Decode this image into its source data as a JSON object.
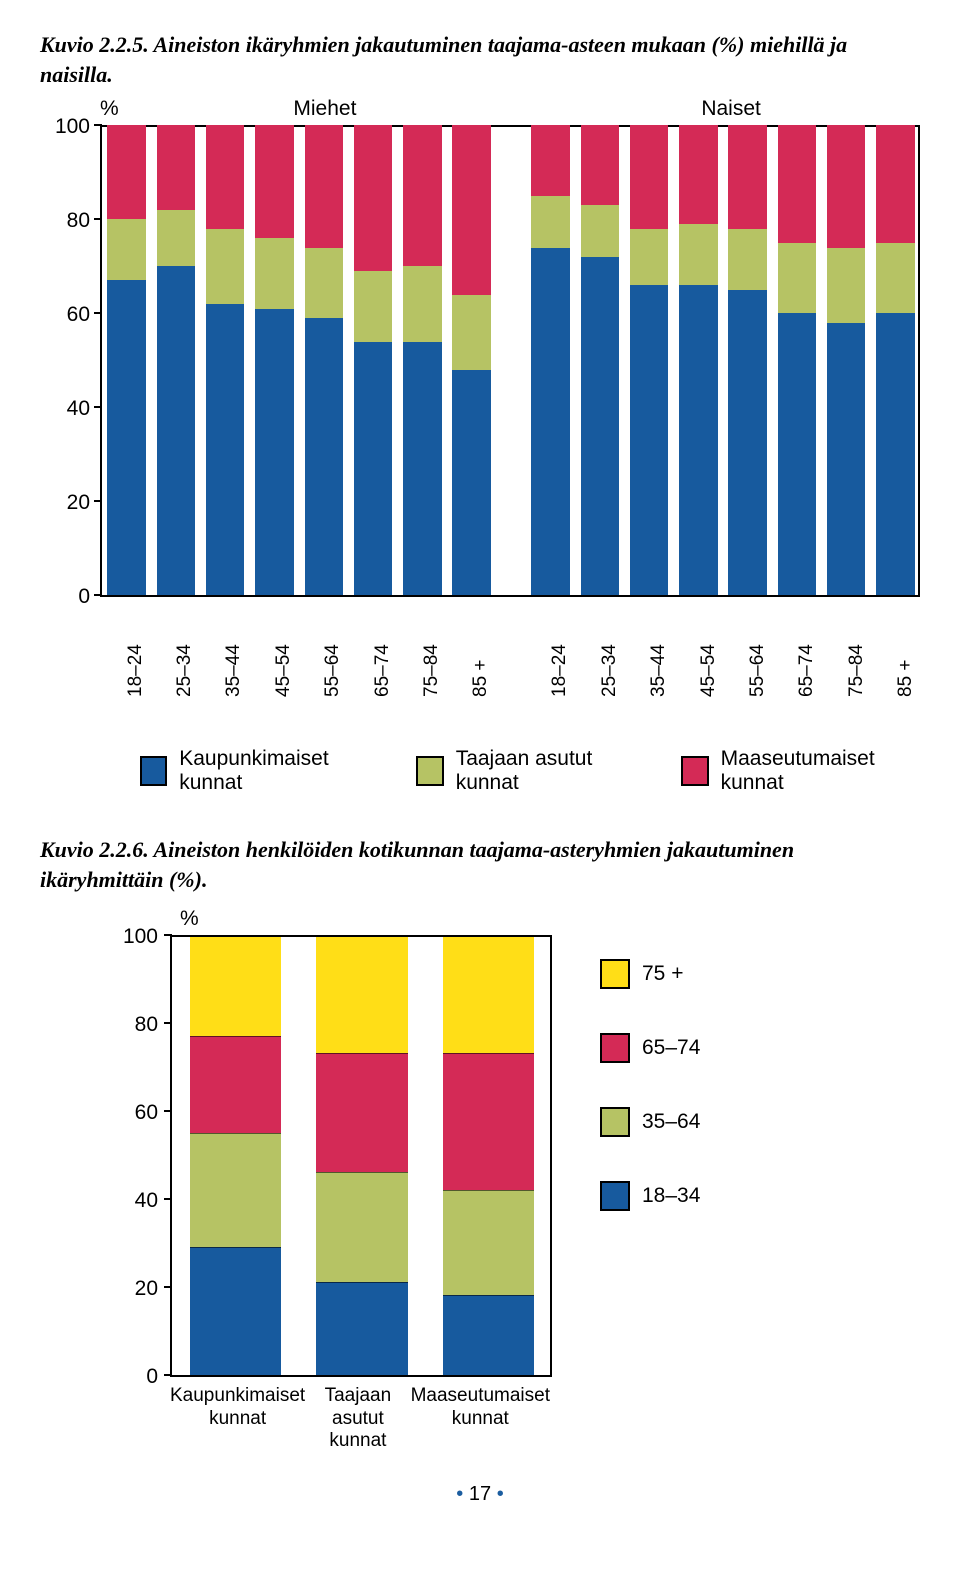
{
  "colors": {
    "blue": "#175a9e",
    "olive": "#b6c364",
    "red": "#d42a56",
    "yellow": "#ffde17",
    "border": "#000000",
    "background": "#ffffff"
  },
  "caption1": "Kuvio 2.2.5. Aineiston ikäryhmien jakautuminen taajama-asteen mukaan (%) miehillä ja naisilla.",
  "chart1": {
    "type": "stacked-bar",
    "y_label_percent": "%",
    "group_labels": [
      "Miehet",
      "Naiset"
    ],
    "ylim": [
      0,
      100
    ],
    "ytick_step": 20,
    "yticks": [
      0,
      20,
      40,
      60,
      80,
      100
    ],
    "categories": [
      "18–24",
      "25–34",
      "35–44",
      "45–54",
      "55–64",
      "65–74",
      "75–84",
      "85 +"
    ],
    "series_order": [
      "kaupunki",
      "taajaan",
      "maaseutu"
    ],
    "series_colors": {
      "kaupunki": "#175a9e",
      "taajaan": "#b6c364",
      "maaseutu": "#d42a56"
    },
    "miehet": [
      {
        "kaupunki": 67,
        "taajaan": 13,
        "maaseutu": 20
      },
      {
        "kaupunki": 70,
        "taajaan": 12,
        "maaseutu": 18
      },
      {
        "kaupunki": 62,
        "taajaan": 16,
        "maaseutu": 22
      },
      {
        "kaupunki": 61,
        "taajaan": 15,
        "maaseutu": 24
      },
      {
        "kaupunki": 59,
        "taajaan": 15,
        "maaseutu": 26
      },
      {
        "kaupunki": 54,
        "taajaan": 15,
        "maaseutu": 31
      },
      {
        "kaupunki": 54,
        "taajaan": 16,
        "maaseutu": 30
      },
      {
        "kaupunki": 48,
        "taajaan": 16,
        "maaseutu": 36
      }
    ],
    "naiset": [
      {
        "kaupunki": 74,
        "taajaan": 11,
        "maaseutu": 15
      },
      {
        "kaupunki": 72,
        "taajaan": 11,
        "maaseutu": 17
      },
      {
        "kaupunki": 66,
        "taajaan": 12,
        "maaseutu": 22
      },
      {
        "kaupunki": 66,
        "taajaan": 13,
        "maaseutu": 21
      },
      {
        "kaupunki": 65,
        "taajaan": 13,
        "maaseutu": 22
      },
      {
        "kaupunki": 60,
        "taajaan": 15,
        "maaseutu": 25
      },
      {
        "kaupunki": 58,
        "taajaan": 16,
        "maaseutu": 26
      },
      {
        "kaupunki": 60,
        "taajaan": 15,
        "maaseutu": 25
      }
    ],
    "legend": [
      {
        "key": "kaupunki",
        "label": "Kaupunkimaiset kunnat"
      },
      {
        "key": "taajaan",
        "label": "Taajaan asutut kunnat"
      },
      {
        "key": "maaseutu",
        "label": "Maaseutumaiset kunnat"
      }
    ]
  },
  "caption2": "Kuvio 2.2.6. Aineiston henkilöiden kotikunnan taajama-asteryhmien jakautuminen ikäryhmittäin (%).",
  "chart2": {
    "type": "stacked-bar",
    "y_label_percent": "%",
    "ylim": [
      0,
      100
    ],
    "ytick_step": 20,
    "yticks": [
      0,
      20,
      40,
      60,
      80,
      100
    ],
    "categories": [
      "Kaupunkimaiset\nkunnat",
      "Taajaan\nasutut\nkunnat",
      "Maaseutumaiset\nkunnat"
    ],
    "series_order": [
      "g18_34",
      "g35_64",
      "g65_74",
      "g75p"
    ],
    "series_colors": {
      "g18_34": "#175a9e",
      "g35_64": "#b6c364",
      "g65_74": "#d42a56",
      "g75p": "#ffde17"
    },
    "values": [
      {
        "g18_34": 29,
        "g35_64": 26,
        "g65_74": 22,
        "g75p": 23
      },
      {
        "g18_34": 21,
        "g35_64": 25,
        "g65_74": 27,
        "g75p": 27
      },
      {
        "g18_34": 18,
        "g35_64": 24,
        "g65_74": 31,
        "g75p": 27
      }
    ],
    "legend": [
      {
        "key": "g75p",
        "label": "75 +"
      },
      {
        "key": "g65_74",
        "label": "65–74"
      },
      {
        "key": "g35_64",
        "label": "35–64"
      },
      {
        "key": "g18_34",
        "label": "18–34"
      }
    ]
  },
  "footer": {
    "dot": "•",
    "page": "17"
  }
}
